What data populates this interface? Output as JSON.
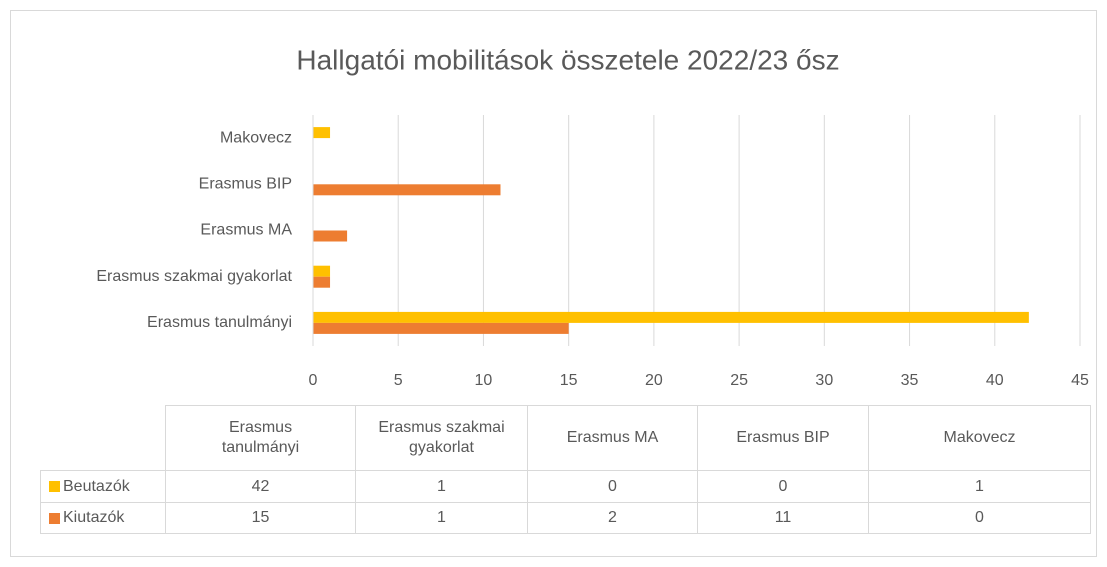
{
  "chart_data": {
    "type": "bar",
    "orientation": "horizontal",
    "title": "Hallgatói mobilitások összetele 2022/23 ősz",
    "categories": [
      "Erasmus tanulmányi",
      "Erasmus szakmai gyakorlat",
      "Erasmus MA",
      "Erasmus BIP",
      "Makovecz"
    ],
    "series": [
      {
        "name": "Beutazók",
        "color": "#FFC000",
        "values": [
          42,
          1,
          0,
          0,
          1
        ]
      },
      {
        "name": "Kiutazók",
        "color": "#ED7D31",
        "values": [
          15,
          1,
          2,
          11,
          0
        ]
      }
    ],
    "xlim": [
      0,
      45
    ],
    "xticks": [
      0,
      5,
      10,
      15,
      20,
      25,
      30,
      35,
      40,
      45
    ],
    "grid": true,
    "data_table": true
  }
}
